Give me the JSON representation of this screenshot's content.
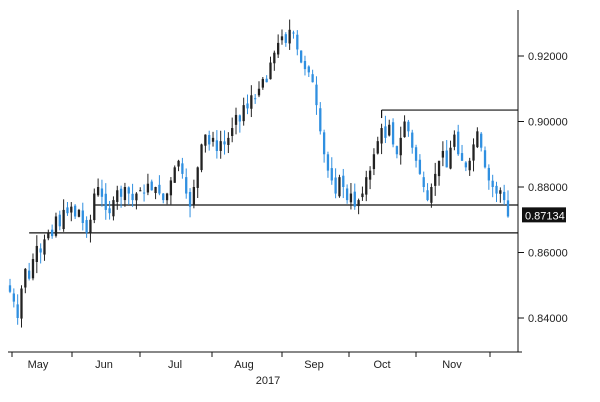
{
  "chart_data": {
    "type": "candlestick",
    "title": "",
    "xlabel": "2017",
    "ylabel": "",
    "ylim": [
      0.83,
      0.932
    ],
    "yticks": [
      {
        "value": 0.84,
        "label": "0.84000"
      },
      {
        "value": 0.86,
        "label": "0.86000"
      },
      {
        "value": 0.88,
        "label": "0.88000"
      },
      {
        "value": 0.9,
        "label": "0.90000"
      },
      {
        "value": 0.92,
        "label": "0.92000"
      }
    ],
    "xticks": [
      "May",
      "Jun",
      "Jul",
      "Aug",
      "Sep",
      "Oct",
      "Nov"
    ],
    "year_label": "2017",
    "last_price": "0.87134",
    "last_price_value": 0.87134,
    "colors": {
      "up": "#222222",
      "down": "#2f8fe0",
      "tag_bg": "#111111",
      "lines": "#111111"
    },
    "grid": false,
    "close_path": [
      0.848,
      0.845,
      0.84,
      0.849,
      0.855,
      0.852,
      0.858,
      0.862,
      0.86,
      0.864,
      0.866,
      0.865,
      0.871,
      0.868,
      0.873,
      0.872,
      0.874,
      0.871,
      0.873,
      0.869,
      0.866,
      0.87,
      0.878,
      0.88,
      0.877,
      0.873,
      0.872,
      0.876,
      0.879,
      0.877,
      0.88,
      0.878,
      0.876,
      0.878,
      0.879,
      0.878,
      0.881,
      0.879,
      0.88,
      0.878,
      0.876,
      0.878,
      0.882,
      0.886,
      0.888,
      0.884,
      0.878,
      0.874,
      0.88,
      0.886,
      0.893,
      0.896,
      0.893,
      0.895,
      0.891,
      0.894,
      0.893,
      0.895,
      0.898,
      0.902,
      0.9,
      0.905,
      0.904,
      0.908,
      0.907,
      0.91,
      0.913,
      0.912,
      0.918,
      0.921,
      0.924,
      0.926,
      0.924,
      0.928,
      0.927,
      0.922,
      0.918,
      0.916,
      0.915,
      0.912,
      0.905,
      0.897,
      0.89,
      0.885,
      0.882,
      0.878,
      0.883,
      0.88,
      0.876,
      0.878,
      0.874,
      0.876,
      0.878,
      0.883,
      0.885,
      0.89,
      0.894,
      0.898,
      0.895,
      0.899,
      0.893,
      0.89,
      0.895,
      0.9,
      0.897,
      0.892,
      0.888,
      0.884,
      0.88,
      0.876,
      0.88,
      0.884,
      0.888,
      0.891,
      0.886,
      0.892,
      0.896,
      0.89,
      0.888,
      0.886,
      0.888,
      0.893,
      0.897,
      0.892,
      0.886,
      0.882,
      0.88,
      0.878,
      0.879,
      0.876,
      0.871
    ],
    "horizontal_lines": [
      {
        "from_index": 5,
        "level": 0.866
      },
      {
        "from_index": 22,
        "level": 0.8745
      },
      {
        "from_index": 97,
        "level": 0.9035
      }
    ]
  }
}
